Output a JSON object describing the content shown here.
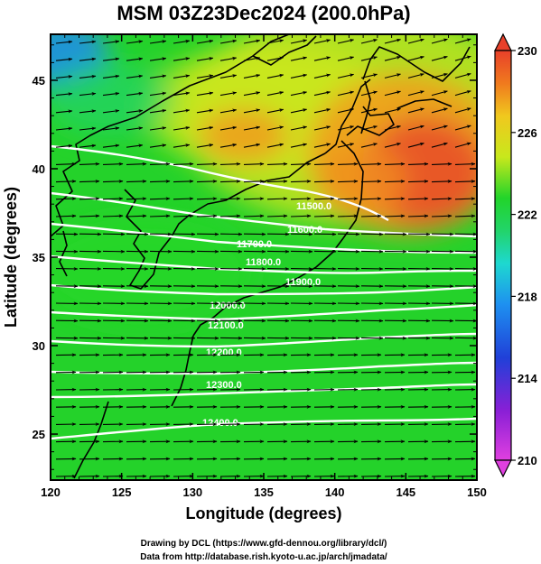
{
  "title": "MSM 03Z23Dec2024 (200.0hPa)",
  "x_axis": {
    "label": "Longitude (degrees)",
    "range": [
      120,
      150
    ],
    "ticks": [
      "120",
      "125",
      "130",
      "135",
      "140",
      "145",
      "150"
    ]
  },
  "y_axis": {
    "label": "Latitude  (degrees)",
    "range": [
      22.4,
      47.6
    ],
    "ticks": [
      "25",
      "30",
      "35",
      "40",
      "45"
    ]
  },
  "colorbar": {
    "range": [
      210,
      230
    ],
    "ticks": [
      "210",
      "214",
      "218",
      "222",
      "226",
      "230"
    ]
  },
  "contour_labels": [
    "11500.0",
    "11600.0",
    "11700.0",
    "11800.0",
    "11900.0",
    "12000.0",
    "12100.0",
    "12200.0",
    "12300.0",
    "12400.0"
  ],
  "credits": {
    "line1": "Drawing by DCL (https://www.gfd-dennou.org/library/dcl/)",
    "line2": "Data from http://database.rish.kyoto-u.ac.jp/arch/jmadata/"
  },
  "colors": {
    "field_green": "#22d42a",
    "field_yellow": "#d9e81c",
    "field_orange": "#f08a1e",
    "field_red": "#e8402a",
    "field_cyan": "#1ec8e0",
    "field_blue": "#2a6ae8",
    "contour": "#ffffff",
    "wind_arrow": "#000000",
    "coastline": "#000000"
  }
}
